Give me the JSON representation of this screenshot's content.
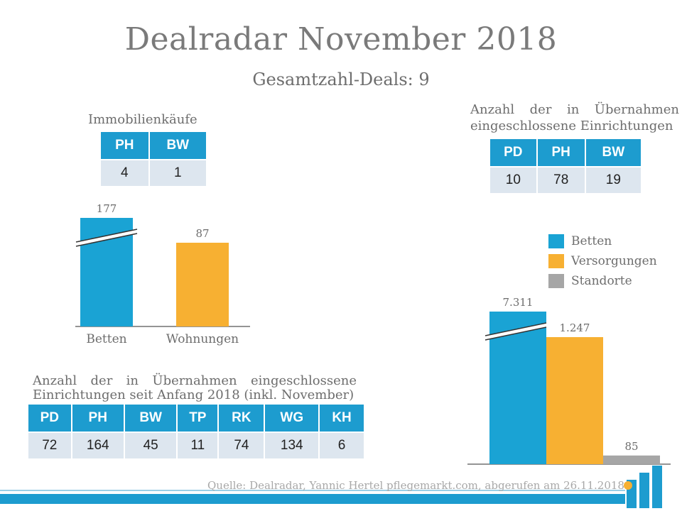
{
  "title": "Dealradar November 2018",
  "subtitle": "Gesamtzahl-Deals: 9",
  "immobilien": {
    "title": "Immobilienkäufe",
    "headers": [
      "PH",
      "BW"
    ],
    "values": [
      "4",
      "1"
    ]
  },
  "uebernahmen": {
    "title_line1": "Anzahl der in Übernahmen",
    "title_line2": "eingeschlossene Einrichtungen",
    "headers": [
      "PD",
      "PH",
      "BW"
    ],
    "values": [
      "10",
      "78",
      "19"
    ]
  },
  "seit_anfang": {
    "title_line1": "Anzahl der in Übernahmen eingeschlossene",
    "title_line2": "Einrichtungen seit Anfang 2018 (inkl. November)",
    "headers": [
      "PD",
      "PH",
      "BW",
      "TP",
      "RK",
      "WG",
      "KH"
    ],
    "values": [
      "72",
      "164",
      "45",
      "11",
      "74",
      "134",
      "6"
    ]
  },
  "legend": {
    "items": [
      {
        "label": "Betten",
        "color": "#1aa3d4"
      },
      {
        "label": "Versorgungen",
        "color": "#f7b032"
      },
      {
        "label": "Standorte",
        "color": "#a6a6a6"
      }
    ]
  },
  "source": "Quelle: Dealradar, Yannic Hertel pflegemarkt.com, abgerufen am 26.11.2018",
  "chart_data": [
    {
      "type": "bar",
      "categories": [
        "Betten",
        "Wohnungen"
      ],
      "values": [
        177,
        87
      ],
      "value_labels": [
        "177",
        "87"
      ],
      "colors": [
        "#1aa3d4",
        "#f7b032"
      ],
      "axis_break": true,
      "title": "",
      "xlabel": "",
      "ylabel": ""
    },
    {
      "type": "bar",
      "categories": [
        "Betten",
        "Versorgungen",
        "Standorte"
      ],
      "values": [
        7311,
        1247,
        85
      ],
      "value_labels": [
        "7.311",
        "1.247",
        "85"
      ],
      "colors": [
        "#1aa3d4",
        "#f7b032",
        "#a6a6a6"
      ],
      "axis_break": true,
      "legend": "right-top",
      "title": "",
      "xlabel": "",
      "ylabel": ""
    }
  ]
}
